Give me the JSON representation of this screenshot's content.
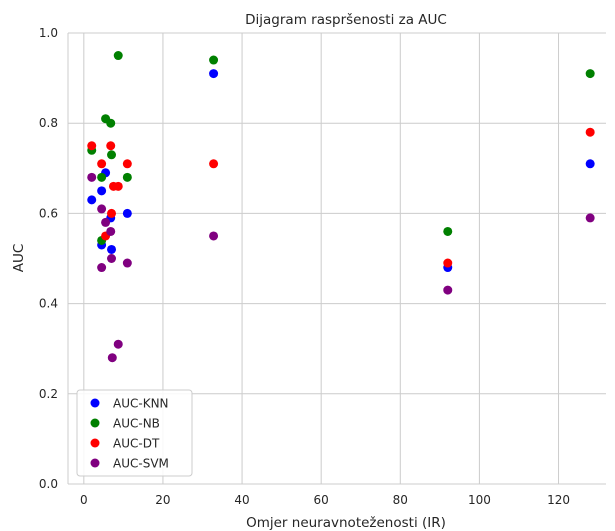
{
  "chart_data": {
    "type": "scatter",
    "title": "Dijagram raspršenosti za AUC",
    "xlabel": "Omjer neuravnoteženosti (IR)",
    "ylabel": "AUC",
    "xlim": [
      -4,
      132
    ],
    "ylim": [
      0.0,
      1.0
    ],
    "xticks": [
      0,
      20,
      40,
      60,
      80,
      100,
      120
    ],
    "yticks": [
      0.0,
      0.2,
      0.4,
      0.6,
      0.8,
      1.0
    ],
    "xtick_labels": [
      "0",
      "20",
      "40",
      "60",
      "80",
      "100",
      "120"
    ],
    "ytick_labels": [
      "0.0",
      "0.2",
      "0.4",
      "0.6",
      "0.8",
      "1.0"
    ],
    "grid": true,
    "legend_position": "lower-left",
    "series": [
      {
        "name": "AUC-KNN",
        "color": "#0000ff",
        "x": [
          2,
          4.5,
          4.5,
          5.5,
          6.8,
          7,
          11,
          32.8,
          92,
          128
        ],
        "y": [
          0.63,
          0.65,
          0.53,
          0.69,
          0.59,
          0.52,
          0.6,
          0.91,
          0.48,
          0.71
        ]
      },
      {
        "name": "AUC-NB",
        "color": "#008000",
        "x": [
          2,
          4.5,
          4.5,
          5.5,
          6.8,
          7,
          8.7,
          11,
          32.8,
          92,
          128
        ],
        "y": [
          0.74,
          0.68,
          0.54,
          0.81,
          0.8,
          0.73,
          0.95,
          0.68,
          0.94,
          0.56,
          0.91
        ]
      },
      {
        "name": "AUC-DT",
        "color": "#ff0000",
        "x": [
          2,
          4.5,
          5.5,
          6.8,
          7,
          7.5,
          8.7,
          11,
          32.8,
          92,
          128
        ],
        "y": [
          0.75,
          0.71,
          0.55,
          0.75,
          0.6,
          0.66,
          0.66,
          0.71,
          0.71,
          0.49,
          0.78
        ]
      },
      {
        "name": "AUC-SVM",
        "color": "#800080",
        "x": [
          2,
          4.5,
          4.5,
          5.5,
          6.8,
          7,
          7.2,
          8.7,
          11,
          32.8,
          92,
          128
        ],
        "y": [
          0.68,
          0.61,
          0.48,
          0.58,
          0.56,
          0.5,
          0.28,
          0.31,
          0.49,
          0.55,
          0.43,
          0.59
        ]
      }
    ]
  }
}
